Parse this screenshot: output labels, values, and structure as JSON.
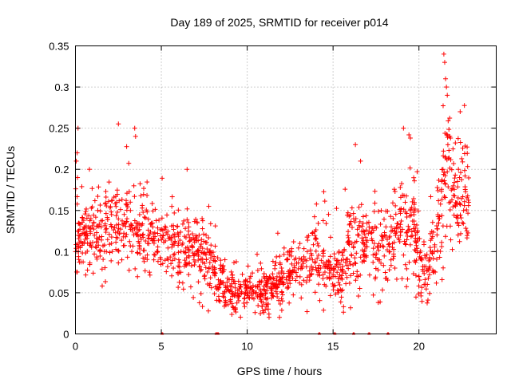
{
  "chart_data": {
    "type": "scatter",
    "title": "Day 189 of 2025, SRMTID for receiver p014",
    "xlabel": "GPS time / hours",
    "ylabel": "SRMTID / TECUs",
    "xlim": [
      0,
      24.5
    ],
    "ylim": [
      0,
      0.35
    ],
    "xticks": [
      0,
      5,
      10,
      15,
      20
    ],
    "xtick_labels": [
      "0",
      "5",
      "10",
      "15",
      "20"
    ],
    "yticks": [
      0,
      0.05,
      0.1,
      0.15,
      0.2,
      0.25,
      0.3,
      0.35
    ],
    "ytick_labels": [
      "0",
      "0.05",
      "0.1",
      "0.15",
      "0.2",
      "0.25",
      "0.3",
      "0.35"
    ],
    "grid": true,
    "marker": "+",
    "color": "#ff0000",
    "series": [
      {
        "name": "SRMTID",
        "x": [
          0.0,
          0.1,
          0.15,
          0.3,
          0.5,
          0.7,
          0.9,
          1.1,
          1.3,
          1.5,
          1.8,
          2.1,
          2.4,
          2.7,
          3.0,
          3.2,
          3.4,
          3.6,
          3.9,
          4.2,
          4.5,
          4.8,
          5.1,
          5.4,
          5.7,
          6.0,
          6.3,
          6.6,
          6.9,
          7.2,
          7.5,
          7.8,
          8.1,
          8.4,
          8.7,
          9.0,
          9.3,
          9.6,
          9.9,
          10.2,
          10.5,
          10.8,
          11.1,
          11.4,
          11.7,
          12.0,
          12.3,
          12.6,
          12.9,
          13.2,
          13.5,
          13.8,
          14.1,
          14.4,
          14.7,
          15.0,
          15.3,
          15.6,
          15.9,
          16.2,
          16.5,
          16.8,
          17.1,
          17.4,
          17.7,
          18.0,
          18.3,
          18.6,
          18.9,
          19.2,
          19.5,
          19.8,
          20.0,
          20.3,
          20.6,
          20.9,
          21.2,
          21.4,
          21.6,
          21.8,
          22.0,
          22.3,
          22.6,
          22.9,
          0.05,
          0.12,
          3.45,
          3.5,
          6.5,
          16.3,
          16.6,
          19.1,
          21.45,
          21.5,
          21.55,
          21.65,
          22.4
        ],
        "y": [
          0.1,
          0.22,
          0.25,
          0.12,
          0.13,
          0.11,
          0.14,
          0.12,
          0.15,
          0.13,
          0.1,
          0.11,
          0.16,
          0.09,
          0.14,
          0.15,
          0.18,
          0.13,
          0.12,
          0.11,
          0.13,
          0.1,
          0.12,
          0.09,
          0.08,
          0.11,
          0.1,
          0.13,
          0.09,
          0.12,
          0.07,
          0.1,
          0.08,
          0.06,
          0.05,
          0.04,
          0.05,
          0.06,
          0.05,
          0.07,
          0.05,
          0.04,
          0.06,
          0.05,
          0.06,
          0.08,
          0.09,
          0.1,
          0.07,
          0.08,
          0.1,
          0.09,
          0.11,
          0.1,
          0.08,
          0.07,
          0.05,
          0.09,
          0.11,
          0.14,
          0.12,
          0.1,
          0.13,
          0.11,
          0.09,
          0.12,
          0.1,
          0.08,
          0.13,
          0.16,
          0.15,
          0.12,
          0.07,
          0.06,
          0.08,
          0.1,
          0.14,
          0.2,
          0.3,
          0.24,
          0.18,
          0.2,
          0.15,
          0.16,
          0.21,
          0.19,
          0.25,
          0.24,
          0.2,
          0.23,
          0.21,
          0.25,
          0.34,
          0.33,
          0.31,
          0.29,
          0.27
        ]
      }
    ],
    "zero_markers_x": [
      5.05,
      8.2,
      8.3,
      14.2,
      15.1,
      16.2,
      17.1,
      18.2
    ]
  }
}
